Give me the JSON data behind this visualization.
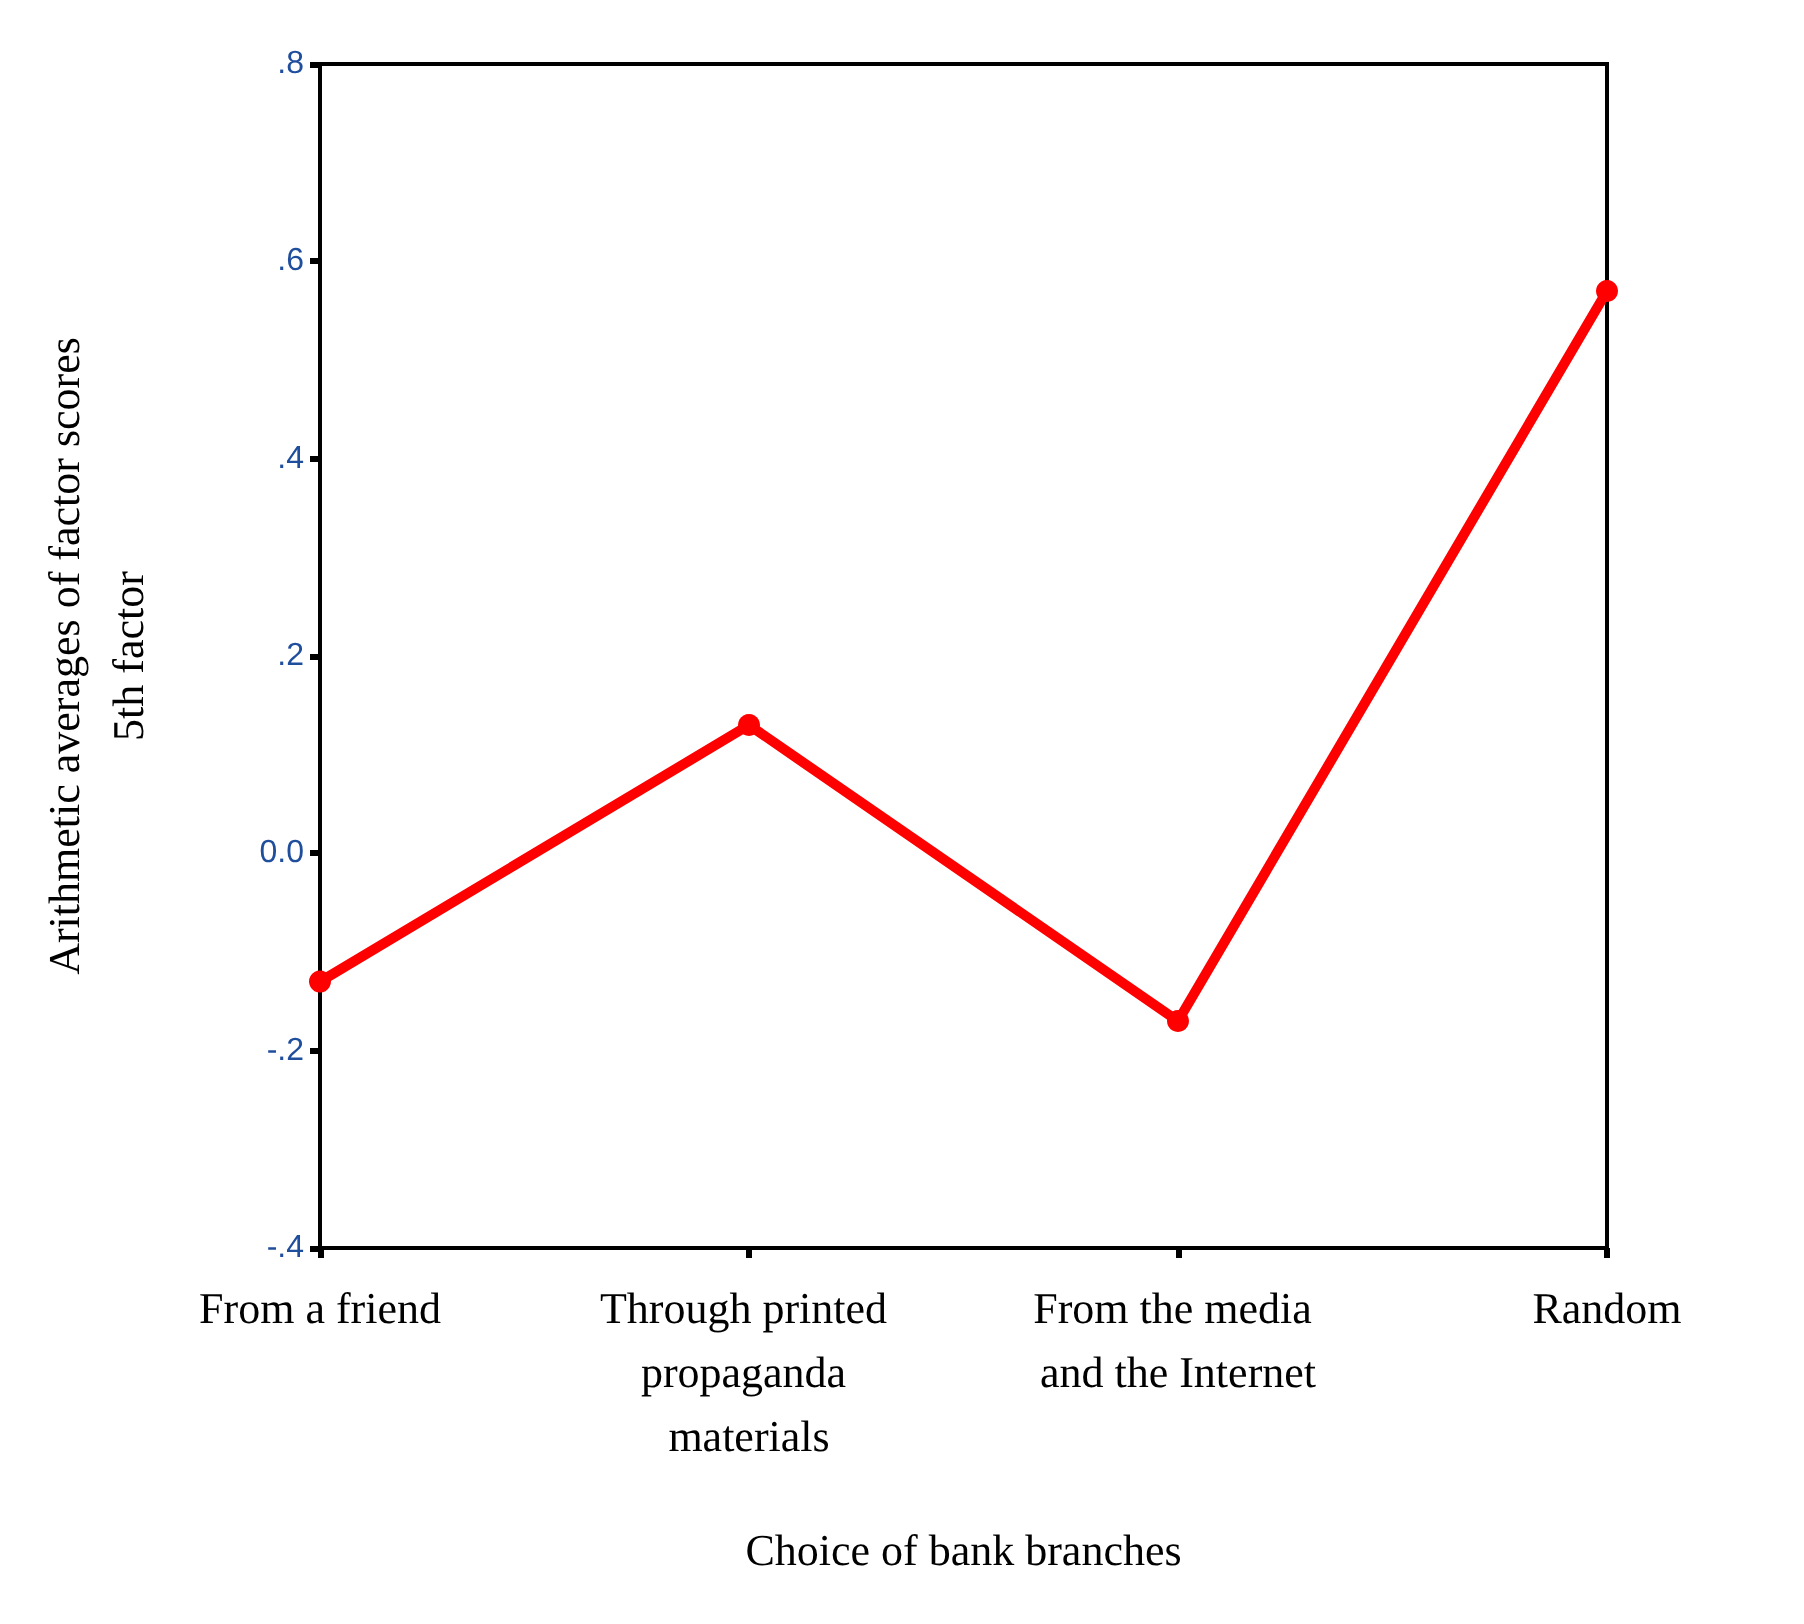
{
  "chart_data": {
    "type": "line",
    "xlabel": "Choice of bank branches",
    "ylabel": "Arithmetic averages of factor scores\n5th factor",
    "categories": [
      "From a friend",
      "Through printed propaganda materials",
      "From the media and the Internet",
      "Random"
    ],
    "values": [
      -0.13,
      0.13,
      -0.17,
      0.57
    ],
    "color": "#ff0000",
    "marker": "circle",
    "line_style": "solid",
    "grid": false,
    "ylim": [
      -0.4,
      0.8
    ],
    "yticks": [
      {
        "value": -0.4,
        "label": "-.4"
      },
      {
        "value": -0.2,
        "label": "-.2"
      },
      {
        "value": 0,
        "label": "0.0"
      },
      {
        "value": 0.2,
        "label": ".2"
      },
      {
        "value": 0.4,
        "label": ".4"
      },
      {
        "value": 0.6,
        "label": ".6"
      },
      {
        "value": 0.8,
        "label": ".8"
      }
    ]
  }
}
